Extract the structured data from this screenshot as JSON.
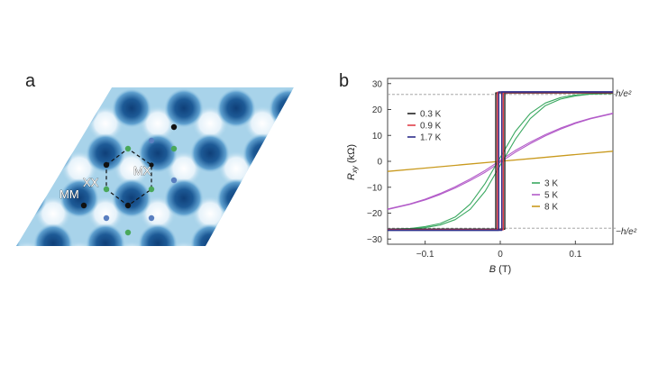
{
  "panel_a": {
    "label": "a",
    "site_labels": [
      "MM",
      "XX",
      "MX"
    ],
    "colors": {
      "background": "#a8d3ea",
      "well_dark": "#1d5a96",
      "well_light": "#f2f8fc",
      "dot_black": "#111111",
      "dot_blue": "#5a7fc0",
      "dot_green": "#4aa85a"
    }
  },
  "panel_b": {
    "label": "b",
    "ylabel_main": "R",
    "ylabel_sub": "xy",
    "ylabel_unit": " (kΩ)",
    "xlabel_main": "B",
    "xlabel_unit": " (T)",
    "ref_top": "h/e²",
    "ref_bottom": "−h/e²",
    "legend_left": [
      {
        "label": "0.3 K",
        "color": "#222222"
      },
      {
        "label": "0.9 K",
        "color": "#e0404a"
      },
      {
        "label": "1.7 K",
        "color": "#2e2e8a"
      }
    ],
    "legend_right": [
      {
        "label": "3 K",
        "color": "#3aa860"
      },
      {
        "label": "5 K",
        "color": "#b35cc9"
      },
      {
        "label": "8 K",
        "color": "#c99a1e"
      }
    ]
  },
  "chart_data": {
    "type": "line",
    "xlabel": "B (T)",
    "ylabel": "Rxy (kΩ)",
    "xlim": [
      -0.15,
      0.15
    ],
    "ylim": [
      -32,
      32
    ],
    "xticks": [
      "−0.1",
      "0",
      "0.1"
    ],
    "yticks": [
      "−30",
      "−20",
      "−10",
      "0",
      "10",
      "20",
      "30"
    ],
    "reference_lines": [
      {
        "label": "h/e²",
        "y": 25.8
      },
      {
        "label": "−h/e²",
        "y": -25.8
      }
    ],
    "series": [
      {
        "name": "0.3 K",
        "color": "#222222",
        "sweep_up": {
          "x": [
            -0.15,
            0.006,
            0.006,
            0.15
          ],
          "y": [
            -26.2,
            -26.2,
            26.4,
            26.4
          ]
        },
        "sweep_down": {
          "x": [
            0.15,
            -0.006,
            -0.006,
            -0.15
          ],
          "y": [
            26.4,
            26.4,
            -26.2,
            -26.2
          ]
        }
      },
      {
        "name": "0.9 K",
        "color": "#e0404a",
        "sweep_up": {
          "x": [
            -0.15,
            0.004,
            0.004,
            0.15
          ],
          "y": [
            -26.4,
            -26.4,
            26.6,
            26.6
          ]
        },
        "sweep_down": {
          "x": [
            0.15,
            -0.004,
            -0.004,
            -0.15
          ],
          "y": [
            26.6,
            26.6,
            -26.4,
            -26.4
          ]
        }
      },
      {
        "name": "1.7 K",
        "color": "#2e2e8a",
        "sweep_up": {
          "x": [
            -0.15,
            0.002,
            0.002,
            0.15
          ],
          "y": [
            -26.6,
            -26.6,
            26.8,
            26.8
          ]
        },
        "sweep_down": {
          "x": [
            0.15,
            -0.002,
            -0.002,
            -0.15
          ],
          "y": [
            26.8,
            26.8,
            -26.6,
            -26.6
          ]
        }
      },
      {
        "name": "3 K",
        "color": "#3aa860",
        "x": [
          -0.15,
          -0.12,
          -0.1,
          -0.08,
          -0.06,
          -0.04,
          -0.02,
          0,
          0.02,
          0.04,
          0.06,
          0.08,
          0.1,
          0.12,
          0.15
        ],
        "y_up": [
          -26.2,
          -25.9,
          -25.2,
          -24.0,
          -21.5,
          -16.5,
          -8.5,
          1.5,
          11.5,
          18.5,
          22.5,
          24.6,
          25.6,
          26.0,
          26.2
        ],
        "y_down": [
          -26.2,
          -26.0,
          -25.6,
          -24.6,
          -22.5,
          -18.5,
          -11.5,
          -1.5,
          8.5,
          16.5,
          21.5,
          24.0,
          25.2,
          25.9,
          26.2
        ]
      },
      {
        "name": "5 K",
        "color": "#b35cc9",
        "x": [
          -0.15,
          -0.12,
          -0.1,
          -0.08,
          -0.06,
          -0.04,
          -0.02,
          0,
          0.02,
          0.04,
          0.06,
          0.08,
          0.1,
          0.12,
          0.15
        ],
        "y_up": [
          -18.4,
          -16.4,
          -14.6,
          -12.4,
          -9.8,
          -6.8,
          -3.5,
          0.4,
          4.2,
          7.4,
          10.3,
          12.8,
          14.9,
          16.6,
          18.6
        ],
        "y_down": [
          -18.6,
          -16.6,
          -14.9,
          -12.8,
          -10.3,
          -7.4,
          -4.2,
          -0.4,
          3.5,
          6.8,
          9.8,
          12.4,
          14.6,
          16.4,
          18.4
        ]
      },
      {
        "name": "8 K",
        "color": "#c99a1e",
        "x": [
          -0.15,
          -0.1,
          -0.05,
          0,
          0.05,
          0.1,
          0.15
        ],
        "y": [
          -3.9,
          -2.6,
          -1.3,
          0,
          1.3,
          2.6,
          3.9
        ]
      }
    ]
  }
}
